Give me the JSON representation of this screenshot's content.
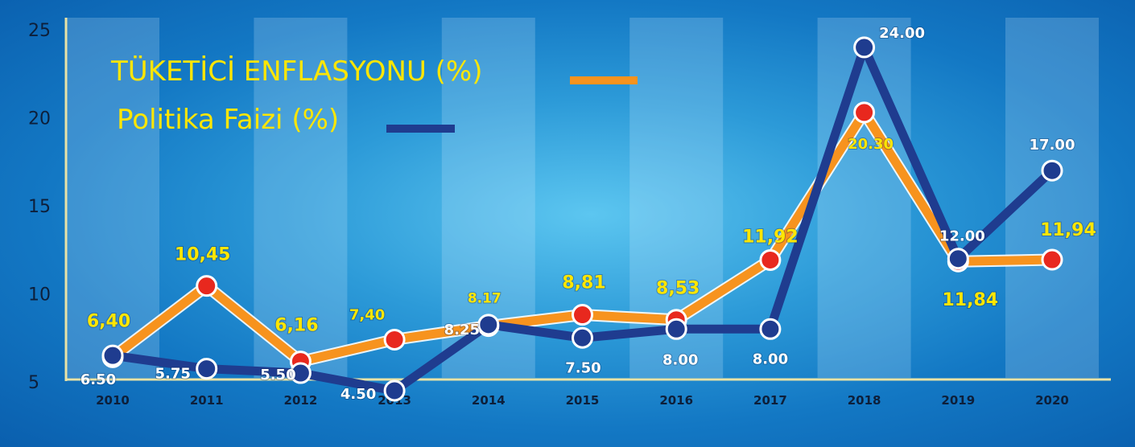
{
  "chart_data": {
    "type": "line",
    "categories": [
      "2010",
      "2011",
      "2012",
      "2013",
      "2014",
      "2015",
      "2016",
      "2017",
      "2018",
      "2019",
      "2020"
    ],
    "ylim": [
      5,
      25
    ],
    "yticks": [
      "5",
      "10",
      "15",
      "20",
      "25"
    ],
    "series": [
      {
        "name": "TÜKETİCİ ENFLASYONU (%)",
        "color": "#f7931e",
        "marker_color": "#e8281e",
        "values": [
          6.4,
          10.45,
          6.16,
          7.4,
          8.17,
          8.81,
          8.53,
          11.92,
          20.3,
          11.84,
          11.94
        ],
        "labels": [
          "6,40",
          "10,45",
          "6,16",
          "7,40",
          "8.17",
          "8,81",
          "8,53",
          "11,92",
          "20.30",
          "11,84",
          "11,94"
        ]
      },
      {
        "name": "Politika Faizi (%)",
        "color": "#1f3c8f",
        "marker_color": "#1f3c8f",
        "values": [
          6.5,
          5.75,
          5.5,
          4.5,
          8.25,
          7.5,
          8.0,
          8.0,
          24.0,
          12.0,
          17.0
        ],
        "labels": [
          "6.50",
          "5.75",
          "5.50",
          "4.50",
          "8.25",
          "7.50",
          "8.00",
          "8.00",
          "24.00",
          "12.00",
          "17.00"
        ]
      }
    ]
  }
}
